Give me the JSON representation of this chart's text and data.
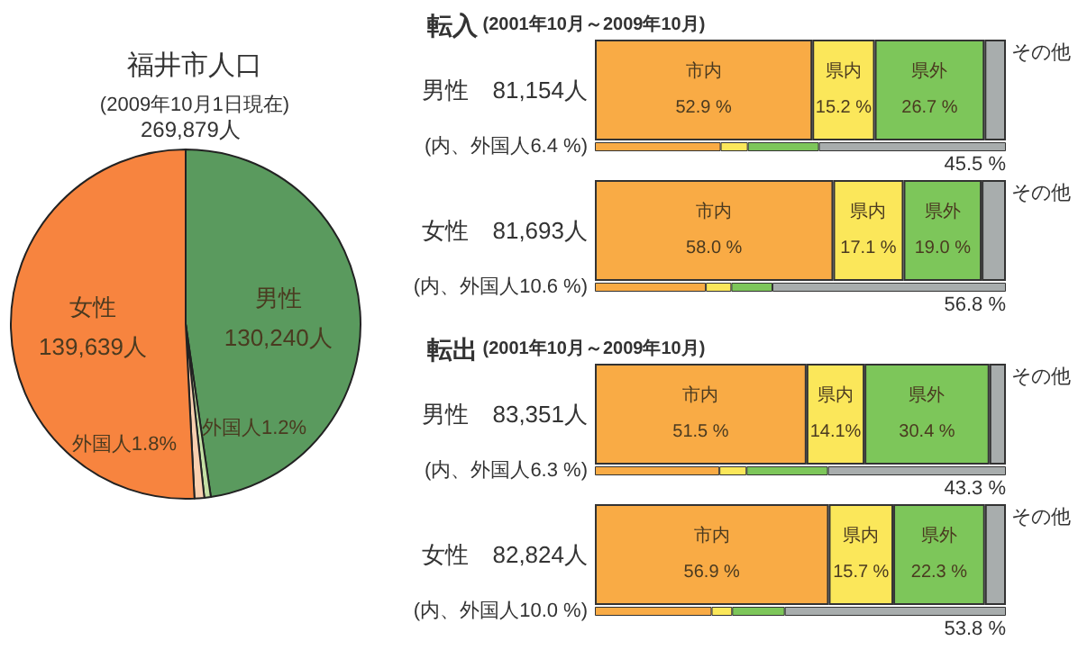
{
  "chart_data": [
    {
      "type": "pie",
      "title": "福井市人口",
      "subtitle": "(2009年10月1日現在)",
      "annotations": [
        "269,879人",
        "130,240人",
        "1.2%",
        "1.8%",
        "139,639人"
      ],
      "categories": [
        "男性",
        "外国人",
        "外国人",
        "女性"
      ],
      "values": [
        47.7,
        0.6,
        0.9,
        50.8
      ],
      "colors": [
        "#5a9a5e",
        "#c5e0a5",
        "#f9d0b0",
        "#f7843f"
      ]
    },
    {
      "type": "bar",
      "orientation": "horizontal",
      "stacked": true,
      "title": "転入",
      "subtitle": "(2001年10月～2009年10月)",
      "categories": [
        "男性　81,154人",
        "(内、外国人6.4 %)"
      ],
      "xlim": [
        0,
        100
      ],
      "tick_labels": "y",
      "series": [
        {
          "name": "市内",
          "color": "#f9ab45",
          "values": [
            52.9,
            30.6
          ],
          "value_labels": [
            "52.9 %",
            null
          ]
        },
        {
          "name": "県内",
          "color": "#fbe75a",
          "values": [
            15.2,
            6.6
          ],
          "value_labels": [
            "15.2 %",
            null
          ]
        },
        {
          "name": "県外",
          "color": "#7dc65a",
          "values": [
            26.7,
            17.3
          ],
          "value_labels": [
            "26.7 %",
            null
          ]
        },
        {
          "name": "その他",
          "color": "#a8adad",
          "values": [
            5.2,
            45.5
          ],
          "value_labels": [
            null,
            "45.5 %"
          ]
        }
      ]
    },
    {
      "type": "bar",
      "orientation": "horizontal",
      "stacked": true,
      "categories": [
        "女性　81,693人",
        "(内、外国人10.6 %)"
      ],
      "xlim": [
        0,
        100
      ],
      "tick_labels": "y",
      "series": [
        {
          "name": "市内",
          "color": "#f9ab45",
          "values": [
            58.0,
            27.0
          ],
          "value_labels": [
            "58.0 %",
            null
          ]
        },
        {
          "name": "県内",
          "color": "#fbe75a",
          "values": [
            17.1,
            6.2
          ],
          "value_labels": [
            "17.1 %",
            null
          ]
        },
        {
          "name": "県外",
          "color": "#7dc65a",
          "values": [
            19.0,
            10.0
          ],
          "value_labels": [
            "19.0 %",
            null
          ]
        },
        {
          "name": "その他",
          "color": "#a8adad",
          "values": [
            5.9,
            56.8
          ],
          "value_labels": [
            null,
            "56.8 %"
          ]
        }
      ]
    },
    {
      "type": "bar",
      "orientation": "horizontal",
      "stacked": true,
      "title": "転出",
      "subtitle": "(2001年10月～2009年10月)",
      "categories": [
        "男性　83,351人",
        "(内、外国人6.3 %)"
      ],
      "xlim": [
        0,
        100
      ],
      "tick_labels": "y",
      "series": [
        {
          "name": "市内",
          "color": "#f9ab45",
          "values": [
            51.5,
            30.3
          ],
          "value_labels": [
            "51.5 %",
            null
          ]
        },
        {
          "name": "県内",
          "color": "#fbe75a",
          "values": [
            14.1,
            6.6
          ],
          "value_labels": [
            "14.1%",
            null
          ]
        },
        {
          "name": "県外",
          "color": "#7dc65a",
          "values": [
            30.4,
            19.8
          ],
          "value_labels": [
            "30.4 %",
            null
          ]
        },
        {
          "name": "その他",
          "color": "#a8adad",
          "values": [
            4.0,
            43.3
          ],
          "value_labels": [
            null,
            "43.3 %"
          ]
        }
      ]
    },
    {
      "type": "bar",
      "orientation": "horizontal",
      "stacked": true,
      "categories": [
        "女性　82,824人",
        "(内、外国人10.0 %)"
      ],
      "xlim": [
        0,
        100
      ],
      "tick_labels": "y",
      "series": [
        {
          "name": "市内",
          "color": "#f9ab45",
          "values": [
            56.9,
            28.4
          ],
          "value_labels": [
            "56.9 %",
            null
          ]
        },
        {
          "name": "県内",
          "color": "#fbe75a",
          "values": [
            15.7,
            5.0
          ],
          "value_labels": [
            "15.7 %",
            null
          ]
        },
        {
          "name": "県外",
          "color": "#7dc65a",
          "values": [
            22.3,
            12.8
          ],
          "value_labels": [
            "22.3 %",
            null
          ]
        },
        {
          "name": "その他",
          "color": "#a8adad",
          "values": [
            5.1,
            53.8
          ],
          "value_labels": [
            null,
            "53.8 %"
          ]
        }
      ]
    }
  ]
}
